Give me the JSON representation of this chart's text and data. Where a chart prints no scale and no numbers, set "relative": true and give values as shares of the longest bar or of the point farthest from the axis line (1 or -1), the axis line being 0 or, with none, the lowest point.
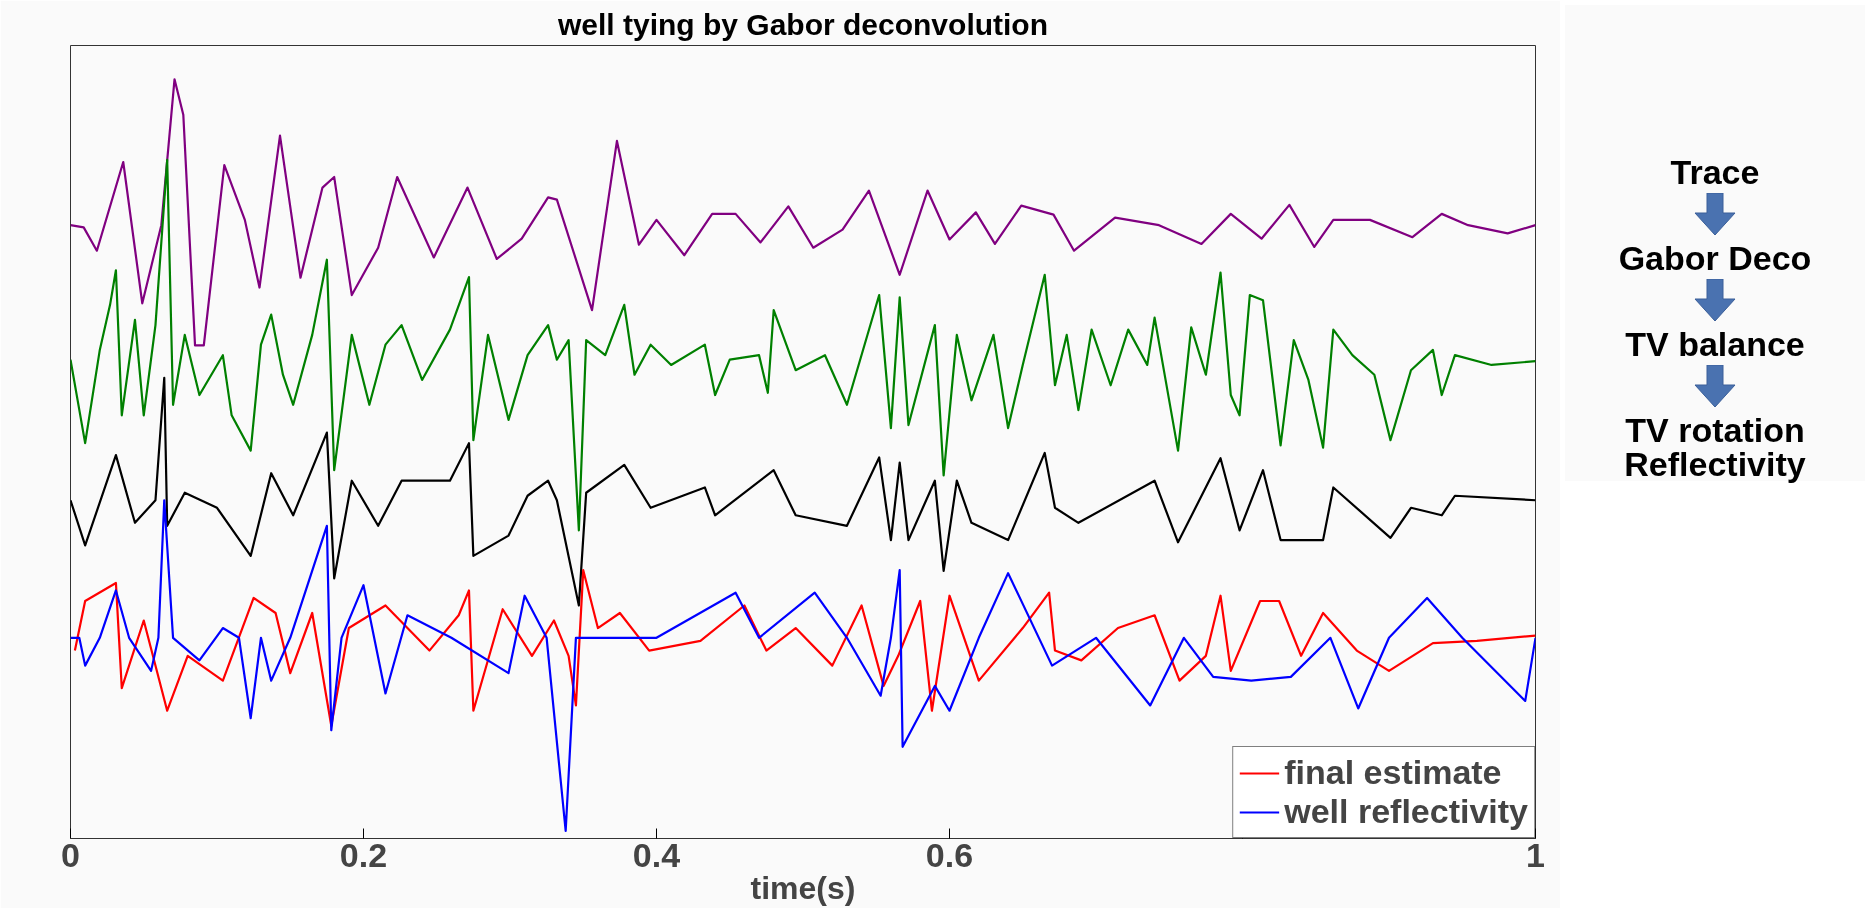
{
  "chart_data": {
    "type": "line",
    "title": "well tying by Gabor deconvolution",
    "xlabel": "time(s)",
    "relative": true,
    "legend": "bottom right",
    "xlim": [
      0,
      1
    ],
    "xticks": [
      0,
      0.2,
      0.4,
      0.6,
      {
        "value": 0.8,
        "label": null
      },
      1
    ],
    "annotations": [
      "Trace",
      "Gabor Deco",
      "TV balance",
      "TV rotation\nReflectivity"
    ],
    "series": [
      {
        "color": "#800080",
        "x": [
          0,
          0.009,
          0.018,
          0.036,
          0.049,
          0.062,
          0.071,
          0.077,
          0.085,
          0.091,
          0.105,
          0.119,
          0.129,
          0.143,
          0.157,
          0.172,
          0.18,
          0.192,
          0.21,
          0.223,
          0.248,
          0.271,
          0.291,
          0.308,
          0.326,
          0.332,
          0.356,
          0.373,
          0.388,
          0.4,
          0.419,
          0.438,
          0.454,
          0.471,
          0.49,
          0.507,
          0.527,
          0.545,
          0.566,
          0.585,
          0.6,
          0.618,
          0.631,
          0.649,
          0.671,
          0.685,
          0.713,
          0.743,
          0.772,
          0.792,
          0.813,
          0.832,
          0.849,
          0.862,
          0.887,
          0.916,
          0.936,
          0.954,
          0.981,
          1.0
        ],
        "values": [
          0.806,
          0.803,
          0.772,
          0.89,
          0.702,
          0.806,
          1.0,
          0.953,
          0.646,
          0.646,
          0.886,
          0.813,
          0.723,
          0.925,
          0.736,
          0.856,
          0.87,
          0.713,
          0.776,
          0.87,
          0.763,
          0.856,
          0.761,
          0.788,
          0.843,
          0.84,
          0.693,
          0.918,
          0.78,
          0.813,
          0.766,
          0.821,
          0.821,
          0.783,
          0.831,
          0.776,
          0.8,
          0.852,
          0.74,
          0.852,
          0.787,
          0.823,
          0.781,
          0.832,
          0.82,
          0.772,
          0.816,
          0.806,
          0.781,
          0.821,
          0.788,
          0.833,
          0.777,
          0.813,
          0.813,
          0.79,
          0.821,
          0.806,
          0.795,
          0.806
        ]
      },
      {
        "color": "#008000",
        "x": [
          0,
          0.01,
          0.02,
          0.027,
          0.031,
          0.035,
          0.044,
          0.05,
          0.058,
          0.066,
          0.07,
          0.078,
          0.088,
          0.104,
          0.11,
          0.123,
          0.13,
          0.137,
          0.145,
          0.152,
          0.165,
          0.175,
          0.18,
          0.192,
          0.204,
          0.215,
          0.226,
          0.24,
          0.259,
          0.272,
          0.275,
          0.285,
          0.299,
          0.312,
          0.326,
          0.332,
          0.34,
          0.347,
          0.352,
          0.365,
          0.378,
          0.385,
          0.396,
          0.41,
          0.433,
          0.44,
          0.45,
          0.47,
          0.476,
          0.48,
          0.495,
          0.515,
          0.53,
          0.552,
          0.56,
          0.566,
          0.572,
          0.59,
          0.596,
          0.605,
          0.615,
          0.63,
          0.64,
          0.65,
          0.665,
          0.672,
          0.68,
          0.688,
          0.697,
          0.71,
          0.722,
          0.735,
          0.74,
          0.756,
          0.765,
          0.775,
          0.785,
          0.792,
          0.798,
          0.805,
          0.814,
          0.826,
          0.835,
          0.845,
          0.855,
          0.862,
          0.875,
          0.89,
          0.901,
          0.915,
          0.93,
          0.936,
          0.945,
          0.97,
          1.0
        ],
        "values": [
          0.627,
          0.516,
          0.64,
          0.7,
          0.746,
          0.553,
          0.68,
          0.553,
          0.673,
          0.893,
          0.567,
          0.66,
          0.58,
          0.633,
          0.553,
          0.506,
          0.647,
          0.687,
          0.607,
          0.567,
          0.66,
          0.76,
          0.48,
          0.66,
          0.567,
          0.647,
          0.673,
          0.6,
          0.667,
          0.737,
          0.52,
          0.66,
          0.547,
          0.633,
          0.673,
          0.627,
          0.653,
          0.4,
          0.653,
          0.633,
          0.7,
          0.607,
          0.647,
          0.62,
          0.647,
          0.58,
          0.627,
          0.633,
          0.583,
          0.693,
          0.613,
          0.633,
          0.567,
          0.713,
          0.536,
          0.71,
          0.54,
          0.673,
          0.473,
          0.66,
          0.573,
          0.66,
          0.536,
          0.62,
          0.74,
          0.593,
          0.66,
          0.56,
          0.667,
          0.593,
          0.667,
          0.62,
          0.683,
          0.506,
          0.67,
          0.607,
          0.743,
          0.58,
          0.553,
          0.713,
          0.706,
          0.513,
          0.653,
          0.6,
          0.51,
          0.667,
          0.633,
          0.607,
          0.52,
          0.613,
          0.64,
          0.58,
          0.633,
          0.62,
          0.625
        ]
      },
      {
        "color": "#000000",
        "x": [
          0,
          0.01,
          0.031,
          0.044,
          0.058,
          0.064,
          0.066,
          0.078,
          0.1,
          0.123,
          0.137,
          0.152,
          0.175,
          0.18,
          0.192,
          0.21,
          0.226,
          0.259,
          0.272,
          0.275,
          0.299,
          0.312,
          0.326,
          0.332,
          0.347,
          0.352,
          0.378,
          0.396,
          0.433,
          0.44,
          0.48,
          0.495,
          0.53,
          0.552,
          0.56,
          0.566,
          0.572,
          0.59,
          0.596,
          0.605,
          0.615,
          0.64,
          0.665,
          0.672,
          0.688,
          0.74,
          0.756,
          0.785,
          0.798,
          0.814,
          0.826,
          0.855,
          0.862,
          0.901,
          0.915,
          0.936,
          0.945,
          1.0
        ],
        "values": [
          0.44,
          0.38,
          0.5,
          0.41,
          0.44,
          0.603,
          0.406,
          0.45,
          0.43,
          0.366,
          0.476,
          0.42,
          0.53,
          0.336,
          0.466,
          0.406,
          0.466,
          0.466,
          0.516,
          0.366,
          0.393,
          0.446,
          0.466,
          0.44,
          0.3,
          0.45,
          0.487,
          0.43,
          0.457,
          0.42,
          0.48,
          0.42,
          0.406,
          0.497,
          0.387,
          0.49,
          0.387,
          0.466,
          0.346,
          0.466,
          0.41,
          0.387,
          0.503,
          0.43,
          0.41,
          0.466,
          0.384,
          0.496,
          0.4,
          0.48,
          0.387,
          0.387,
          0.457,
          0.39,
          0.43,
          0.42,
          0.446,
          0.44
        ]
      },
      {
        "name": "final estimate",
        "color": "#ff0000",
        "x": [
          0.003,
          0.01,
          0.031,
          0.035,
          0.05,
          0.066,
          0.08,
          0.104,
          0.125,
          0.14,
          0.15,
          0.165,
          0.178,
          0.19,
          0.215,
          0.245,
          0.265,
          0.272,
          0.275,
          0.295,
          0.315,
          0.33,
          0.34,
          0.345,
          0.35,
          0.36,
          0.375,
          0.395,
          0.43,
          0.46,
          0.475,
          0.495,
          0.52,
          0.54,
          0.555,
          0.565,
          0.58,
          0.588,
          0.6,
          0.62,
          0.65,
          0.668,
          0.672,
          0.69,
          0.715,
          0.74,
          0.757,
          0.775,
          0.785,
          0.792,
          0.812,
          0.825,
          0.84,
          0.855,
          0.878,
          0.9,
          0.93,
          0.96,
          1.0
        ],
        "values": [
          0.24,
          0.306,
          0.33,
          0.19,
          0.28,
          0.16,
          0.233,
          0.2,
          0.31,
          0.29,
          0.21,
          0.29,
          0.14,
          0.27,
          0.3,
          0.24,
          0.287,
          0.32,
          0.16,
          0.295,
          0.233,
          0.28,
          0.233,
          0.167,
          0.347,
          0.27,
          0.29,
          0.24,
          0.253,
          0.3,
          0.24,
          0.27,
          0.22,
          0.3,
          0.193,
          0.233,
          0.306,
          0.16,
          0.313,
          0.2,
          0.27,
          0.317,
          0.24,
          0.227,
          0.27,
          0.287,
          0.2,
          0.233,
          0.313,
          0.213,
          0.306,
          0.306,
          0.233,
          0.29,
          0.24,
          0.213,
          0.25,
          0.253,
          0.26
        ]
      },
      {
        "name": "well reflectivity",
        "color": "#0000ff",
        "x": [
          0,
          0.006,
          0.01,
          0.02,
          0.031,
          0.04,
          0.055,
          0.06,
          0.064,
          0.07,
          0.088,
          0.104,
          0.115,
          0.123,
          0.13,
          0.137,
          0.15,
          0.175,
          0.178,
          0.185,
          0.2,
          0.215,
          0.23,
          0.26,
          0.299,
          0.31,
          0.325,
          0.338,
          0.345,
          0.4,
          0.454,
          0.47,
          0.508,
          0.53,
          0.553,
          0.56,
          0.566,
          0.568,
          0.59,
          0.6,
          0.62,
          0.64,
          0.67,
          0.7,
          0.737,
          0.76,
          0.78,
          0.806,
          0.833,
          0.86,
          0.879,
          0.9,
          0.926,
          0.95,
          0.993,
          1.0
        ],
        "values": [
          0.257,
          0.257,
          0.22,
          0.257,
          0.32,
          0.257,
          0.213,
          0.257,
          0.44,
          0.257,
          0.227,
          0.27,
          0.257,
          0.15,
          0.257,
          0.2,
          0.257,
          0.406,
          0.134,
          0.257,
          0.327,
          0.183,
          0.287,
          0.257,
          0.21,
          0.313,
          0.257,
          0.0,
          0.257,
          0.257,
          0.317,
          0.257,
          0.317,
          0.257,
          0.18,
          0.257,
          0.347,
          0.112,
          0.193,
          0.16,
          0.257,
          0.343,
          0.22,
          0.257,
          0.167,
          0.257,
          0.205,
          0.2,
          0.205,
          0.257,
          0.163,
          0.257,
          0.31,
          0.257,
          0.173,
          0.257
        ]
      }
    ]
  }
}
